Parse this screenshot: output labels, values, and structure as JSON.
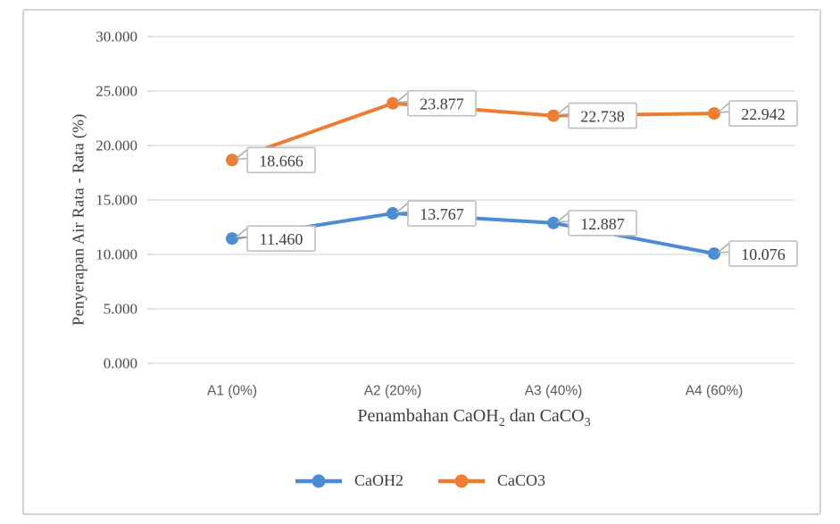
{
  "chart_data": {
    "type": "line",
    "title": "",
    "ylabel": "Penyerapan Air Rata - Rata (%)",
    "xlabel": "Penambahan CaOH2 dan CaCO3",
    "xlabel_parts": [
      {
        "text": "Penambahan CaOH",
        "sub": false
      },
      {
        "text": "2",
        "sub": true
      },
      {
        "text": " dan CaCO",
        "sub": false
      },
      {
        "text": "3",
        "sub": true
      }
    ],
    "categories": [
      "A1 (0%)",
      "A2 (20%)",
      "A3 (40%)",
      "A4 (60%)"
    ],
    "series": [
      {
        "name": "CaOH2",
        "color": "#4b8cd2",
        "values": [
          11.46,
          13.767,
          12.887,
          10.076
        ],
        "point_labels": [
          "11.460",
          "13.767",
          "12.887",
          "10.076"
        ]
      },
      {
        "name": "CaCO3",
        "color": "#ed7d31",
        "values": [
          18.666,
          23.877,
          22.738,
          22.942
        ],
        "point_labels": [
          "18.666",
          "23.877",
          "22.738",
          "22.942"
        ]
      }
    ],
    "ylim": [
      0,
      30
    ],
    "ytick_step": 5,
    "ytick_labels": [
      "0.000",
      "5.000",
      "10.000",
      "15.000",
      "20.000",
      "25.000",
      "30.000"
    ],
    "grid": true,
    "legend_position": "bottom",
    "colors": {
      "grid": "#d9d9d9",
      "tick_mark": "#c6c6c6",
      "frame_border": "#d2d2d2",
      "tick_text": "#4a4a4a",
      "label_text": "#3d3d3d",
      "callout_fill": "#ffffff",
      "callout_border": "#bfbfbf",
      "callout_tail": "#a6a6a6"
    }
  }
}
